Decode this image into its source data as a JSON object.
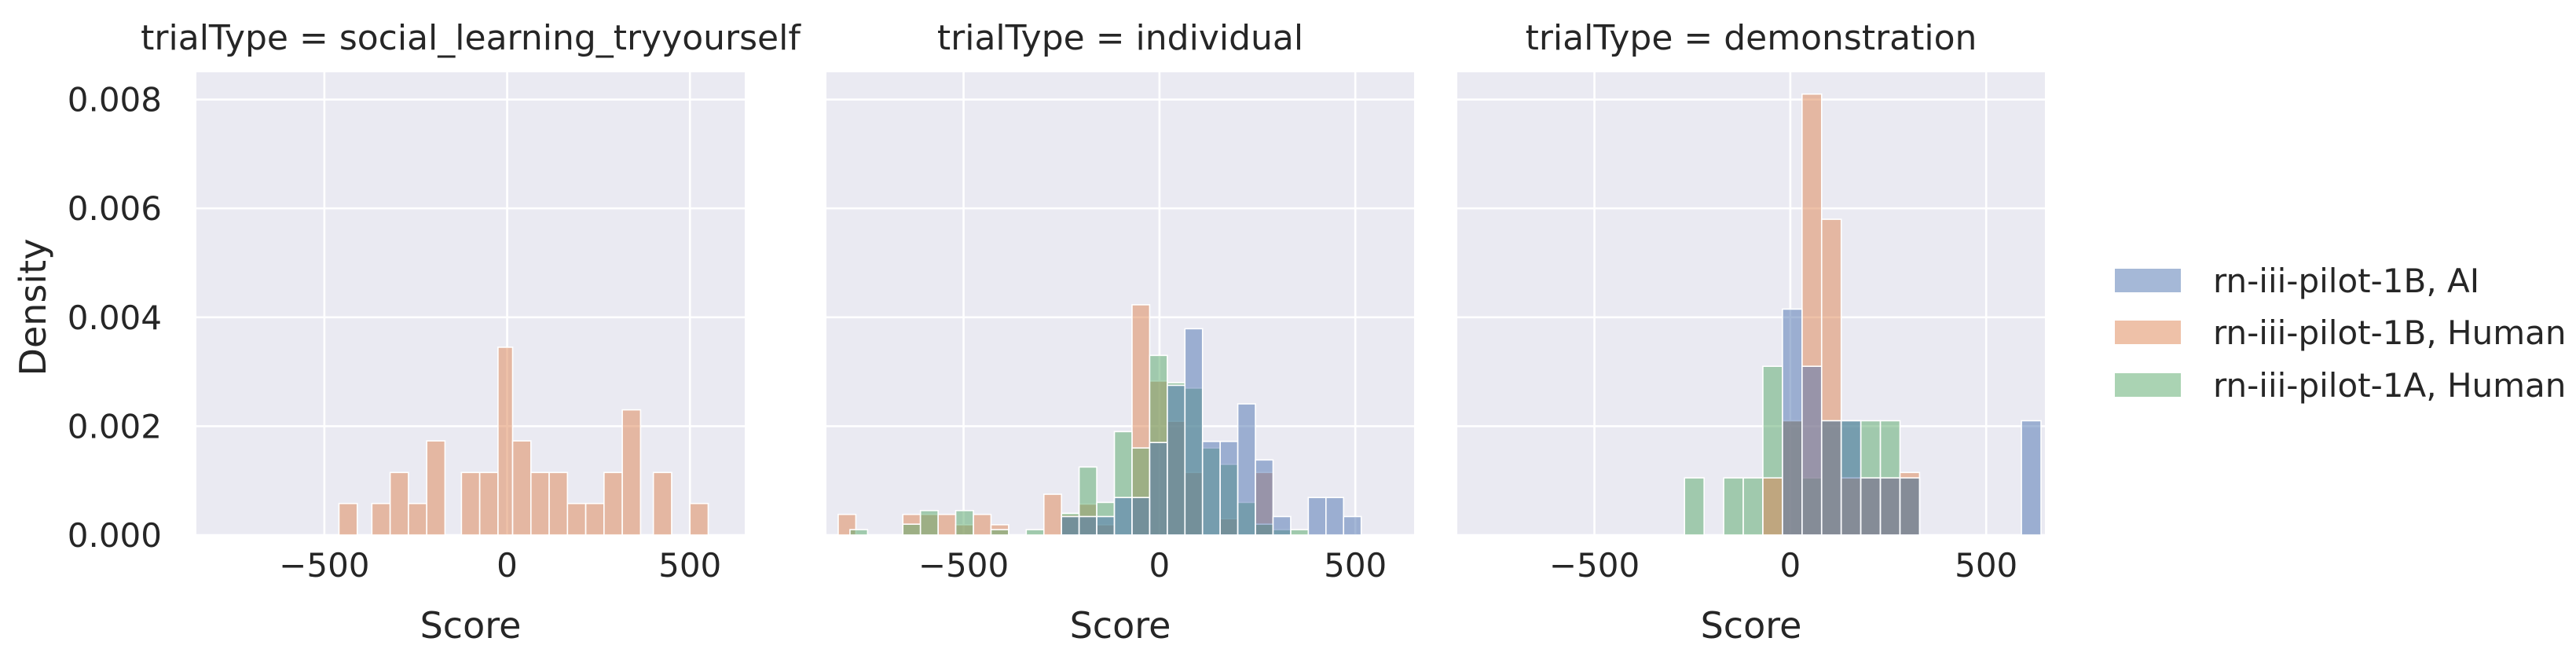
{
  "chart_data": {
    "type": "bar",
    "ylabel": "Density",
    "xlabel": "Score",
    "xlim": [
      -850,
      650
    ],
    "ylim": [
      0,
      0.0085
    ],
    "xticks": [
      -500,
      0,
      500
    ],
    "xtick_labels": [
      "−500",
      "0",
      "500"
    ],
    "yticks": [
      0,
      0.002,
      0.004,
      0.006,
      0.008
    ],
    "ytick_labels": [
      "0.000",
      "0.002",
      "0.004",
      "0.006",
      "0.008"
    ],
    "grid": true,
    "legend_position": "right",
    "series_styles": [
      {
        "name": "rn-iii-pilot-1B, AI",
        "color": "#4c72b0"
      },
      {
        "name": "rn-iii-pilot-1B, Human",
        "color": "#dd8452"
      },
      {
        "name": "rn-iii-pilot-1A, Human",
        "color": "#55a868"
      }
    ],
    "panels": [
      {
        "title": "trialType = social_learning_tryyourself",
        "series": [
          {
            "name": "rn-iii-pilot-1B, Human",
            "bins": [
              {
                "x0": -460,
                "x1": -410,
                "y": 0.00058
              },
              {
                "x0": -370,
                "x1": -320,
                "y": 0.00058
              },
              {
                "x0": -320,
                "x1": -270,
                "y": 0.00115
              },
              {
                "x0": -270,
                "x1": -220,
                "y": 0.00058
              },
              {
                "x0": -220,
                "x1": -170,
                "y": 0.00173
              },
              {
                "x0": -125,
                "x1": -75,
                "y": 0.00115
              },
              {
                "x0": -75,
                "x1": -25,
                "y": 0.00115
              },
              {
                "x0": -25,
                "x1": 15,
                "y": 0.00345
              },
              {
                "x0": 15,
                "x1": 65,
                "y": 0.00173
              },
              {
                "x0": 65,
                "x1": 115,
                "y": 0.00115
              },
              {
                "x0": 115,
                "x1": 165,
                "y": 0.00115
              },
              {
                "x0": 165,
                "x1": 215,
                "y": 0.00058
              },
              {
                "x0": 215,
                "x1": 265,
                "y": 0.00058
              },
              {
                "x0": 265,
                "x1": 315,
                "y": 0.00115
              },
              {
                "x0": 315,
                "x1": 365,
                "y": 0.0023
              },
              {
                "x0": 400,
                "x1": 450,
                "y": 0.00115
              },
              {
                "x0": 500,
                "x1": 550,
                "y": 0.00058
              }
            ]
          }
        ]
      },
      {
        "title": "trialType = individual",
        "series": [
          {
            "name": "rn-iii-pilot-1B, Human",
            "bins": [
              {
                "x0": -820,
                "x1": -775,
                "y": 0.00038
              },
              {
                "x0": -655,
                "x1": -610,
                "y": 0.00038
              },
              {
                "x0": -610,
                "x1": -565,
                "y": 0.00038
              },
              {
                "x0": -565,
                "x1": -520,
                "y": 0.00038
              },
              {
                "x0": -520,
                "x1": -475,
                "y": 0.00019
              },
              {
                "x0": -475,
                "x1": -430,
                "y": 0.00038
              },
              {
                "x0": -430,
                "x1": -385,
                "y": 0.00019
              },
              {
                "x0": -295,
                "x1": -250,
                "y": 0.00075
              },
              {
                "x0": -250,
                "x1": -205,
                "y": 0.00038
              },
              {
                "x0": -205,
                "x1": -160,
                "y": 0.00057
              },
              {
                "x0": -160,
                "x1": -115,
                "y": 0.00019
              },
              {
                "x0": -70,
                "x1": -25,
                "y": 0.00423
              },
              {
                "x0": -25,
                "x1": 20,
                "y": 0.00283
              },
              {
                "x0": 20,
                "x1": 65,
                "y": 0.00209
              },
              {
                "x0": 65,
                "x1": 110,
                "y": 0.00115
              },
              {
                "x0": 155,
                "x1": 200,
                "y": 0.0003
              },
              {
                "x0": 245,
                "x1": 290,
                "y": 0.00115
              }
            ]
          },
          {
            "name": "rn-iii-pilot-1A, Human",
            "bins": [
              {
                "x0": -790,
                "x1": -745,
                "y": 0.0001
              },
              {
                "x0": -655,
                "x1": -610,
                "y": 0.0002
              },
              {
                "x0": -610,
                "x1": -565,
                "y": 0.00045
              },
              {
                "x0": -520,
                "x1": -475,
                "y": 0.00045
              },
              {
                "x0": -430,
                "x1": -385,
                "y": 0.0001
              },
              {
                "x0": -340,
                "x1": -295,
                "y": 0.0001
              },
              {
                "x0": -250,
                "x1": -205,
                "y": 0.0004
              },
              {
                "x0": -205,
                "x1": -160,
                "y": 0.00125
              },
              {
                "x0": -160,
                "x1": -115,
                "y": 0.0006
              },
              {
                "x0": -115,
                "x1": -70,
                "y": 0.0019
              },
              {
                "x0": -70,
                "x1": -25,
                "y": 0.0016
              },
              {
                "x0": -25,
                "x1": 20,
                "y": 0.0033
              },
              {
                "x0": 20,
                "x1": 65,
                "y": 0.0028
              },
              {
                "x0": 65,
                "x1": 110,
                "y": 0.0027
              },
              {
                "x0": 110,
                "x1": 155,
                "y": 0.0016
              },
              {
                "x0": 155,
                "x1": 200,
                "y": 0.0013
              },
              {
                "x0": 200,
                "x1": 245,
                "y": 0.0006
              },
              {
                "x0": 245,
                "x1": 290,
                "y": 0.0002
              },
              {
                "x0": 290,
                "x1": 335,
                "y": 0.0001
              },
              {
                "x0": 335,
                "x1": 380,
                "y": 0.0001
              }
            ]
          },
          {
            "name": "rn-iii-pilot-1B, AI",
            "bins": [
              {
                "x0": -250,
                "x1": -205,
                "y": 0.00034
              },
              {
                "x0": -205,
                "x1": -160,
                "y": 0.00034
              },
              {
                "x0": -160,
                "x1": -115,
                "y": 0.00034
              },
              {
                "x0": -115,
                "x1": -70,
                "y": 0.00069
              },
              {
                "x0": -70,
                "x1": -25,
                "y": 0.00069
              },
              {
                "x0": -25,
                "x1": 20,
                "y": 0.0017
              },
              {
                "x0": 20,
                "x1": 65,
                "y": 0.00275
              },
              {
                "x0": 65,
                "x1": 110,
                "y": 0.00379
              },
              {
                "x0": 110,
                "x1": 155,
                "y": 0.00172
              },
              {
                "x0": 155,
                "x1": 200,
                "y": 0.00172
              },
              {
                "x0": 200,
                "x1": 245,
                "y": 0.00241
              },
              {
                "x0": 245,
                "x1": 290,
                "y": 0.00138
              },
              {
                "x0": 290,
                "x1": 335,
                "y": 0.00034
              },
              {
                "x0": 380,
                "x1": 425,
                "y": 0.00069
              },
              {
                "x0": 425,
                "x1": 470,
                "y": 0.00069
              },
              {
                "x0": 470,
                "x1": 515,
                "y": 0.00034
              }
            ]
          }
        ]
      },
      {
        "title": "trialType = demonstration",
        "series": [
          {
            "name": "rn-iii-pilot-1A, Human",
            "bins": [
              {
                "x0": -270,
                "x1": -220,
                "y": 0.00105
              },
              {
                "x0": -170,
                "x1": -120,
                "y": 0.00105
              },
              {
                "x0": -120,
                "x1": -70,
                "y": 0.00105
              },
              {
                "x0": -70,
                "x1": -20,
                "y": 0.0031
              },
              {
                "x0": -20,
                "x1": 30,
                "y": 0.0021
              },
              {
                "x0": 30,
                "x1": 80,
                "y": 0.00105
              },
              {
                "x0": 80,
                "x1": 130,
                "y": 0.0021
              },
              {
                "x0": 130,
                "x1": 180,
                "y": 0.0021
              },
              {
                "x0": 180,
                "x1": 230,
                "y": 0.0021
              },
              {
                "x0": 230,
                "x1": 280,
                "y": 0.0021
              },
              {
                "x0": 280,
                "x1": 330,
                "y": 0.00105
              }
            ]
          },
          {
            "name": "rn-iii-pilot-1B, Human",
            "bins": [
              {
                "x0": -70,
                "x1": -20,
                "y": 0.00105
              },
              {
                "x0": -20,
                "x1": 30,
                "y": 0.0021
              },
              {
                "x0": 30,
                "x1": 80,
                "y": 0.0081
              },
              {
                "x0": 80,
                "x1": 130,
                "y": 0.0058
              },
              {
                "x0": 130,
                "x1": 180,
                "y": 0.00105
              },
              {
                "x0": 180,
                "x1": 230,
                "y": 0.00105
              },
              {
                "x0": 230,
                "x1": 280,
                "y": 0.00105
              },
              {
                "x0": 280,
                "x1": 330,
                "y": 0.00115
              }
            ]
          },
          {
            "name": "rn-iii-pilot-1B, AI",
            "bins": [
              {
                "x0": -20,
                "x1": 30,
                "y": 0.00415
              },
              {
                "x0": 30,
                "x1": 80,
                "y": 0.0031
              },
              {
                "x0": 80,
                "x1": 130,
                "y": 0.0021
              },
              {
                "x0": 130,
                "x1": 180,
                "y": 0.0021
              },
              {
                "x0": 180,
                "x1": 230,
                "y": 0.00105
              },
              {
                "x0": 230,
                "x1": 280,
                "y": 0.00105
              },
              {
                "x0": 280,
                "x1": 330,
                "y": 0.00105
              },
              {
                "x0": 590,
                "x1": 640,
                "y": 0.0021
              }
            ]
          }
        ]
      }
    ]
  }
}
